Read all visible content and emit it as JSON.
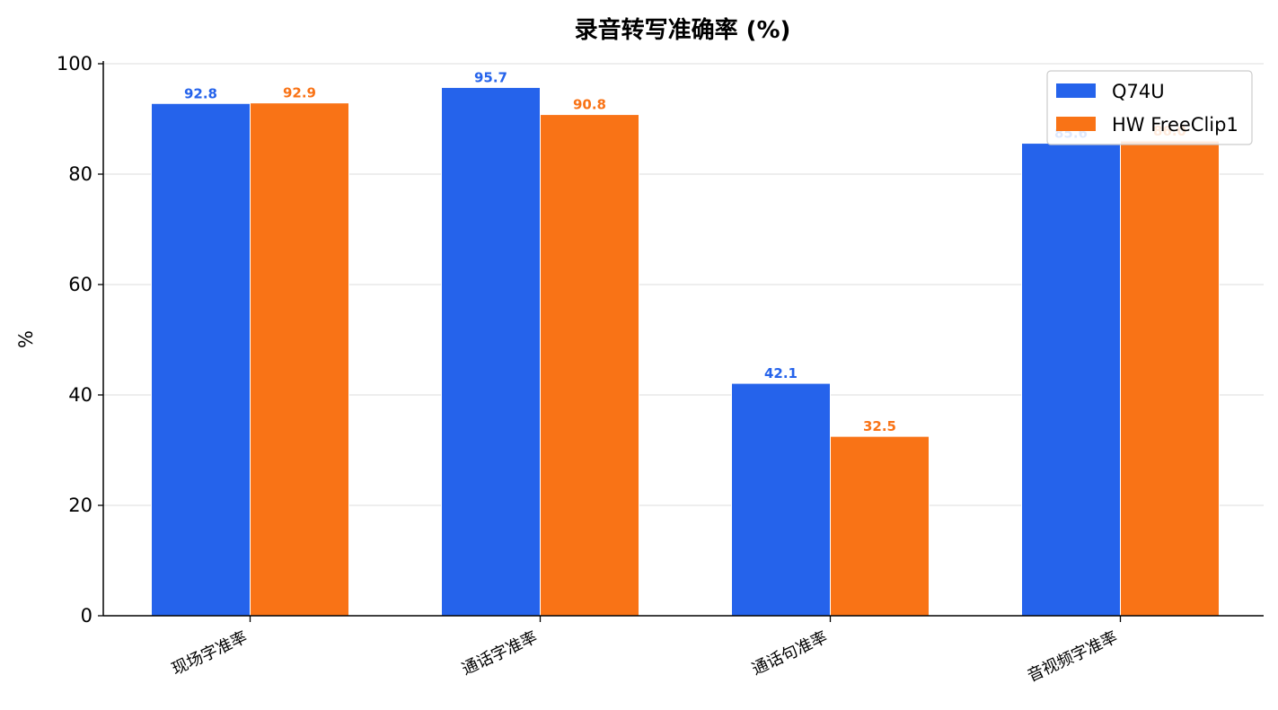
{
  "chart_data": {
    "type": "bar",
    "title": "录音转写准确率 (%)",
    "xlabel": "",
    "ylabel": "%",
    "ylim": [
      0,
      100
    ],
    "yticks": [
      0,
      20,
      40,
      60,
      80,
      100
    ],
    "grid": "y",
    "legend_position": "top-right",
    "categories": [
      "现场字准率",
      "通话字准率",
      "通话句准率",
      "音视频字准率"
    ],
    "series": [
      {
        "name": "Q74U",
        "color": "#2563eb",
        "values": [
          92.8,
          95.7,
          42.1,
          85.6
        ]
      },
      {
        "name": "HW FreeClip1",
        "color": "#f97316",
        "values": [
          92.9,
          90.8,
          32.5,
          86.0
        ]
      }
    ]
  }
}
